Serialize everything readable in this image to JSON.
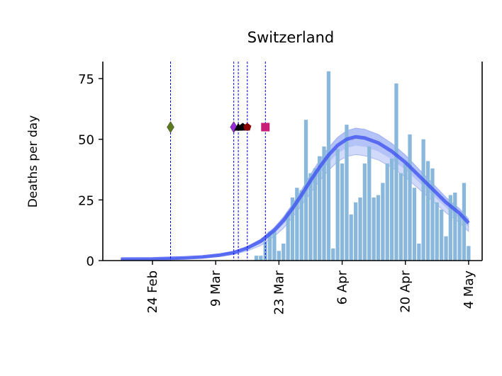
{
  "chart_data": {
    "type": "bar",
    "title": "Switzerland",
    "xlabel": "",
    "ylabel": "Deaths per day",
    "ylim": [
      0,
      82
    ],
    "yticks": [
      0,
      25,
      50,
      75
    ],
    "xlim": [
      "2020-02-13",
      "2020-05-07"
    ],
    "xticks": [
      "2020-02-24",
      "2020-03-09",
      "2020-03-23",
      "2020-04-06",
      "2020-04-20",
      "2020-05-04"
    ],
    "xtick_labels": [
      "24 Feb",
      "9 Mar",
      "23 Mar",
      "6 Apr",
      "20 Apr",
      "4 May"
    ],
    "grid": false,
    "colors": {
      "bars": "#8ab8dc",
      "fit_line": "#3a4ef0",
      "fit_band": "#7c95f2",
      "intervention_line": "#0000ff"
    },
    "daily_deaths": {
      "dates": [
        "2020-03-18",
        "2020-03-19",
        "2020-03-20",
        "2020-03-21",
        "2020-03-22",
        "2020-03-23",
        "2020-03-24",
        "2020-03-25",
        "2020-03-26",
        "2020-03-27",
        "2020-03-28",
        "2020-03-29",
        "2020-03-30",
        "2020-03-31",
        "2020-04-01",
        "2020-04-02",
        "2020-04-03",
        "2020-04-04",
        "2020-04-05",
        "2020-04-06",
        "2020-04-07",
        "2020-04-08",
        "2020-04-09",
        "2020-04-10",
        "2020-04-11",
        "2020-04-12",
        "2020-04-13",
        "2020-04-14",
        "2020-04-15",
        "2020-04-16",
        "2020-04-17",
        "2020-04-18",
        "2020-04-19",
        "2020-04-20",
        "2020-04-21",
        "2020-04-22",
        "2020-04-23",
        "2020-04-24",
        "2020-04-25",
        "2020-04-26",
        "2020-04-27",
        "2020-04-28",
        "2020-04-29",
        "2020-04-30",
        "2020-05-01",
        "2020-05-02",
        "2020-05-03",
        "2020-05-04"
      ],
      "values": [
        2,
        2,
        8,
        12,
        12,
        4,
        7,
        20,
        26,
        30,
        29,
        58,
        36,
        38,
        43,
        47,
        78,
        5,
        46,
        40,
        56,
        19,
        24,
        26,
        40,
        47,
        26,
        27,
        32,
        40,
        42,
        73,
        36,
        40,
        52,
        30,
        7,
        50,
        41,
        38,
        24,
        21,
        10,
        27,
        28,
        19,
        32,
        6
      ]
    },
    "fit": {
      "dates": [
        "2020-02-17",
        "2020-02-24",
        "2020-03-02",
        "2020-03-06",
        "2020-03-10",
        "2020-03-13",
        "2020-03-16",
        "2020-03-19",
        "2020-03-22",
        "2020-03-24",
        "2020-03-26",
        "2020-03-28",
        "2020-03-30",
        "2020-04-01",
        "2020-04-03",
        "2020-04-05",
        "2020-04-07",
        "2020-04-09",
        "2020-04-11",
        "2020-04-14",
        "2020-04-17",
        "2020-04-20",
        "2020-04-23",
        "2020-04-26",
        "2020-04-29",
        "2020-05-02",
        "2020-05-04"
      ],
      "mean": [
        0.6,
        0.7,
        1.1,
        1.5,
        2.3,
        3.3,
        5.2,
        8,
        12.5,
        16.5,
        21.5,
        27,
        33,
        38.5,
        43.5,
        47.5,
        50,
        51,
        50.5,
        48.5,
        45,
        40.5,
        35,
        29.5,
        24,
        19.5,
        15.5
      ],
      "inner_low": [
        0.5,
        0.6,
        0.9,
        1.3,
        2,
        2.9,
        4.6,
        7.1,
        11.3,
        15,
        19.7,
        24.9,
        30.5,
        35.7,
        40.4,
        44.2,
        46.5,
        47.4,
        46.9,
        45,
        41.7,
        37.5,
        32.3,
        27.1,
        21.9,
        17.6,
        13.8
      ],
      "inner_high": [
        0.7,
        0.8,
        1.3,
        1.7,
        2.6,
        3.7,
        5.8,
        8.9,
        13.7,
        18,
        23.3,
        29.1,
        35.5,
        41.3,
        46.6,
        50.8,
        53.5,
        54.6,
        54.1,
        52,
        48.3,
        43.5,
        37.7,
        31.9,
        26.1,
        21.4,
        17.2
      ],
      "outer_low": [
        0.4,
        0.5,
        0.8,
        1.1,
        1.7,
        2.5,
        4,
        6.2,
        10,
        13.4,
        17.8,
        22.7,
        27.9,
        32.8,
        37.2,
        40.8,
        42.9,
        43.7,
        43.2,
        41.5,
        38.4,
        34.4,
        29.5,
        24.6,
        19.7,
        15.6,
        12
      ]
    },
    "intervention_dates": [
      "2020-02-28",
      "2020-03-13",
      "2020-03-14",
      "2020-03-16",
      "2020-03-20"
    ],
    "intervention_markers": [
      {
        "date": "2020-02-28",
        "shape": "diamond",
        "color": "#5b7a1e"
      },
      {
        "date": "2020-03-13",
        "shape": "diamond",
        "color": "#9a2bd9"
      },
      {
        "date": "2020-03-14",
        "shape": "triangle",
        "color": "#000000"
      },
      {
        "date": "2020-03-15",
        "shape": "pentagon",
        "color": "#000000"
      },
      {
        "date": "2020-03-16",
        "shape": "pentagon",
        "color": "#8b0000"
      },
      {
        "date": "2020-03-20",
        "shape": "square",
        "color": "#c81e7a"
      }
    ],
    "marker_level": 55
  }
}
